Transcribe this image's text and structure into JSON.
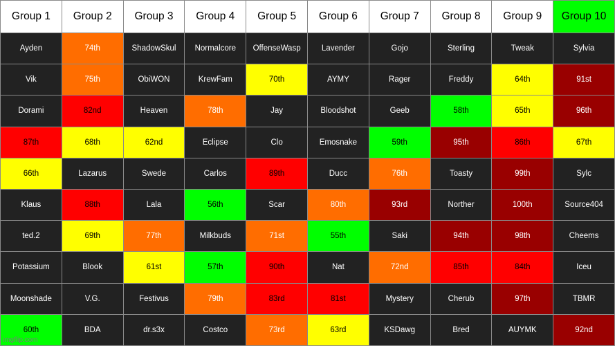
{
  "headers": [
    {
      "label": "Group 1",
      "color": "white"
    },
    {
      "label": "Group 2",
      "color": "white"
    },
    {
      "label": "Group 3",
      "color": "white"
    },
    {
      "label": "Group 4",
      "color": "white"
    },
    {
      "label": "Group 5",
      "color": "white"
    },
    {
      "label": "Group 6",
      "color": "white"
    },
    {
      "label": "Group 7",
      "color": "white"
    },
    {
      "label": "Group 8",
      "color": "white"
    },
    {
      "label": "Group 9",
      "color": "white"
    },
    {
      "label": "Group 10",
      "color": "lime"
    }
  ],
  "rows": [
    [
      {
        "text": "Ayden",
        "color": "dark"
      },
      {
        "text": "74th",
        "color": "orange"
      },
      {
        "text": "ShadowSkul",
        "color": "dark"
      },
      {
        "text": "Normalcore",
        "color": "dark"
      },
      {
        "text": "OffenseWasp",
        "color": "dark"
      },
      {
        "text": "Lavender",
        "color": "dark"
      },
      {
        "text": "Gojo",
        "color": "dark"
      },
      {
        "text": "Sterling",
        "color": "dark"
      },
      {
        "text": "Tweak",
        "color": "dark"
      },
      {
        "text": "Sylvia",
        "color": "dark"
      }
    ],
    [
      {
        "text": "Vik",
        "color": "dark"
      },
      {
        "text": "75th",
        "color": "orange"
      },
      {
        "text": "ObiWON",
        "color": "dark"
      },
      {
        "text": "KrewFam",
        "color": "dark"
      },
      {
        "text": "70th",
        "color": "yellow"
      },
      {
        "text": "AYMY",
        "color": "dark"
      },
      {
        "text": "Rager",
        "color": "dark"
      },
      {
        "text": "Freddy",
        "color": "dark"
      },
      {
        "text": "64th",
        "color": "yellow"
      },
      {
        "text": "91st",
        "color": "maroon"
      }
    ],
    [
      {
        "text": "Dorami",
        "color": "dark"
      },
      {
        "text": "82nd",
        "color": "red"
      },
      {
        "text": "Heaven",
        "color": "dark"
      },
      {
        "text": "78th",
        "color": "orange"
      },
      {
        "text": "Jay",
        "color": "dark"
      },
      {
        "text": "Bloodshot",
        "color": "dark"
      },
      {
        "text": "Geeb",
        "color": "dark"
      },
      {
        "text": "58th",
        "color": "green"
      },
      {
        "text": "65th",
        "color": "yellow"
      },
      {
        "text": "96th",
        "color": "maroon"
      }
    ],
    [
      {
        "text": "87th",
        "color": "red"
      },
      {
        "text": "68th",
        "color": "yellow"
      },
      {
        "text": "62nd",
        "color": "yellow"
      },
      {
        "text": "Eclipse",
        "color": "dark"
      },
      {
        "text": "Clo",
        "color": "dark"
      },
      {
        "text": "Emosnake",
        "color": "dark"
      },
      {
        "text": "59th",
        "color": "green"
      },
      {
        "text": "95th",
        "color": "maroon"
      },
      {
        "text": "86th",
        "color": "red"
      },
      {
        "text": "67th",
        "color": "yellow"
      }
    ],
    [
      {
        "text": "66th",
        "color": "yellow"
      },
      {
        "text": "Lazarus",
        "color": "dark"
      },
      {
        "text": "Swede",
        "color": "dark"
      },
      {
        "text": "Carlos",
        "color": "dark"
      },
      {
        "text": "89th",
        "color": "red"
      },
      {
        "text": "Ducc",
        "color": "dark"
      },
      {
        "text": "76th",
        "color": "orange"
      },
      {
        "text": "Toasty",
        "color": "dark"
      },
      {
        "text": "99th",
        "color": "maroon"
      },
      {
        "text": "Sylc",
        "color": "dark"
      }
    ],
    [
      {
        "text": "Klaus",
        "color": "dark"
      },
      {
        "text": "88th",
        "color": "red"
      },
      {
        "text": "Lala",
        "color": "dark"
      },
      {
        "text": "56th",
        "color": "green"
      },
      {
        "text": "Scar",
        "color": "dark"
      },
      {
        "text": "80th",
        "color": "orange"
      },
      {
        "text": "93rd",
        "color": "maroon"
      },
      {
        "text": "Norther",
        "color": "dark"
      },
      {
        "text": "100th",
        "color": "maroon"
      },
      {
        "text": "Source404",
        "color": "dark"
      }
    ],
    [
      {
        "text": "ted.2",
        "color": "dark"
      },
      {
        "text": "69th",
        "color": "yellow"
      },
      {
        "text": "77th",
        "color": "orange"
      },
      {
        "text": "Milkbuds",
        "color": "dark"
      },
      {
        "text": "71st",
        "color": "orange"
      },
      {
        "text": "55th",
        "color": "green"
      },
      {
        "text": "Saki",
        "color": "dark"
      },
      {
        "text": "94th",
        "color": "maroon"
      },
      {
        "text": "98th",
        "color": "maroon"
      },
      {
        "text": "Cheems",
        "color": "dark"
      }
    ],
    [
      {
        "text": "Potassium",
        "color": "dark"
      },
      {
        "text": "Blook",
        "color": "dark"
      },
      {
        "text": "61st",
        "color": "yellow"
      },
      {
        "text": "57th",
        "color": "green"
      },
      {
        "text": "90th",
        "color": "red"
      },
      {
        "text": "Nat",
        "color": "dark"
      },
      {
        "text": "72nd",
        "color": "orange"
      },
      {
        "text": "85th",
        "color": "red"
      },
      {
        "text": "84th",
        "color": "red"
      },
      {
        "text": "Iceu",
        "color": "dark"
      }
    ],
    [
      {
        "text": "Moonshade",
        "color": "dark"
      },
      {
        "text": "V.G.",
        "color": "dark"
      },
      {
        "text": "Festivus",
        "color": "dark"
      },
      {
        "text": "79th",
        "color": "orange"
      },
      {
        "text": "83rd",
        "color": "red"
      },
      {
        "text": "81st",
        "color": "red"
      },
      {
        "text": "Mystery",
        "color": "dark"
      },
      {
        "text": "Cherub",
        "color": "dark"
      },
      {
        "text": "97th",
        "color": "maroon"
      },
      {
        "text": "TBMR",
        "color": "dark"
      }
    ],
    [
      {
        "text": "60th",
        "color": "green"
      },
      {
        "text": "BDA",
        "color": "dark"
      },
      {
        "text": "dr.s3x",
        "color": "dark"
      },
      {
        "text": "Costco",
        "color": "dark"
      },
      {
        "text": "73rd",
        "color": "orange"
      },
      {
        "text": "63rd",
        "color": "yellow"
      },
      {
        "text": "KSDawg",
        "color": "dark"
      },
      {
        "text": "Bred",
        "color": "dark"
      },
      {
        "text": "AUYMK",
        "color": "dark"
      },
      {
        "text": "92nd",
        "color": "maroon"
      }
    ]
  ],
  "watermark": "imgflip.com"
}
